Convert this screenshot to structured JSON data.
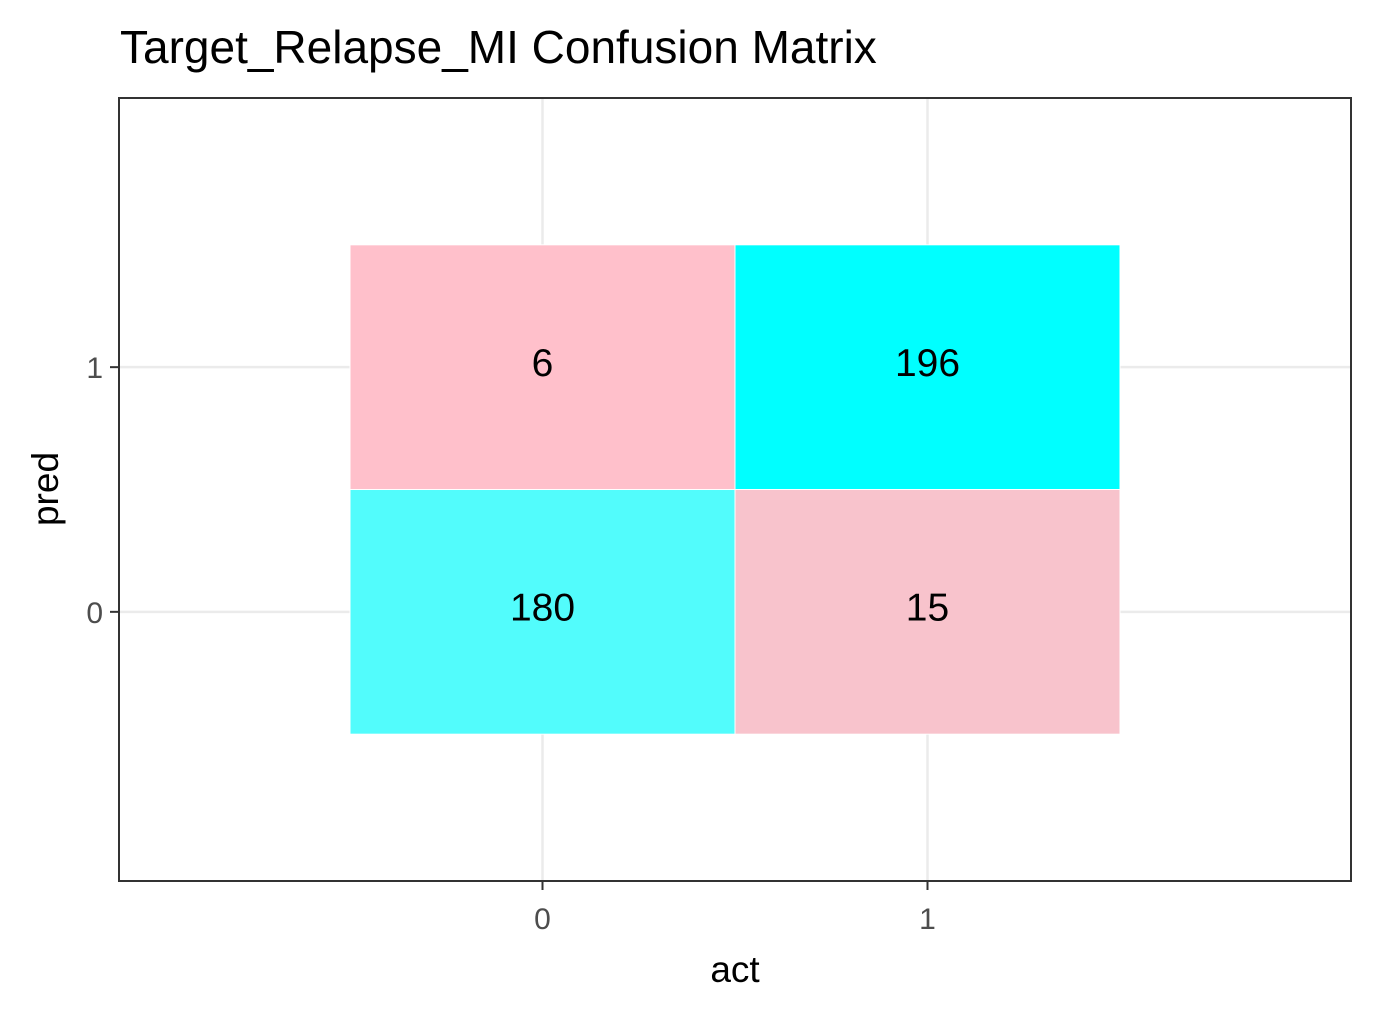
{
  "chart_data": {
    "type": "heatmap",
    "title": "Target_Relapse_MI Confusion Matrix",
    "xlabel": "act",
    "ylabel": "pred",
    "x_categories": [
      "0",
      "1"
    ],
    "y_categories": [
      "0",
      "1"
    ],
    "cells": [
      {
        "act": "0",
        "pred": "1",
        "value": 6,
        "label": "6",
        "color": "#FFC0CB"
      },
      {
        "act": "1",
        "pred": "1",
        "value": 196,
        "label": "196",
        "color": "#00FFFF"
      },
      {
        "act": "0",
        "pred": "0",
        "value": 180,
        "label": "180",
        "color": "#52FCFC"
      },
      {
        "act": "1",
        "pred": "0",
        "value": 15,
        "label": "15",
        "color": "#F8C3CC"
      }
    ],
    "grid": true,
    "legend": "none"
  }
}
